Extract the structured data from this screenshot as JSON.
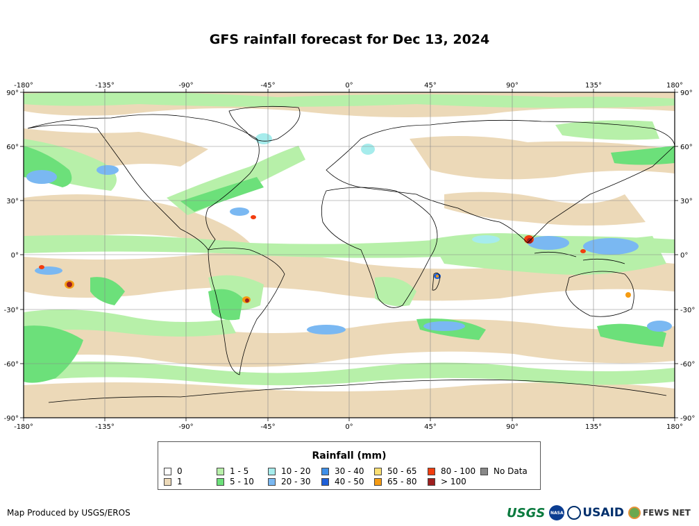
{
  "title": "GFS rainfall forecast for Dec 13, 2024",
  "longitude_ticks": [
    "-180°",
    "-135°",
    "-90°",
    "-45°",
    "0°",
    "45°",
    "90°",
    "135°",
    "180°"
  ],
  "latitude_ticks": [
    "90°",
    "60°",
    "30°",
    "0°",
    "-30°",
    "-60°",
    "-90°"
  ],
  "legend": {
    "title": "Rainfall (mm)",
    "items": [
      {
        "label": "0",
        "color": "#ffffff"
      },
      {
        "label": "1",
        "color": "#ecd9b8"
      },
      {
        "label": "1 - 5",
        "color": "#b7f0a9"
      },
      {
        "label": "5 - 10",
        "color": "#6ce07a"
      },
      {
        "label": "10 - 20",
        "color": "#a6ecec"
      },
      {
        "label": "20 - 30",
        "color": "#7ab8f2"
      },
      {
        "label": "30 - 40",
        "color": "#3f8fe8"
      },
      {
        "label": "40 - 50",
        "color": "#1e5fd8"
      },
      {
        "label": "50 - 65",
        "color": "#fadf73"
      },
      {
        "label": "65 - 80",
        "color": "#f59b12"
      },
      {
        "label": "80 - 100",
        "color": "#f23d0f"
      },
      {
        "label": "> 100",
        "color": "#9e1f1f"
      },
      {
        "label": "No Data",
        "color": "#888888"
      }
    ]
  },
  "credit": "Map Produced by USGS/EROS",
  "logos": {
    "usgs": "USGS",
    "nasa": "NASA",
    "usaid": "USAID",
    "fews": "FEWS NET"
  }
}
